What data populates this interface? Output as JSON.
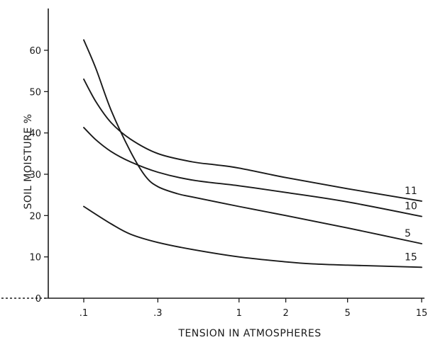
{
  "chart_data": {
    "type": "line",
    "title": "",
    "xlabel": "TENSION IN ATMOSPHERES",
    "ylabel": "SOIL MOISTURE %",
    "x_scale": "log",
    "xlim": [
      0.1,
      15
    ],
    "ylim": [
      0,
      65
    ],
    "x_ticks": [
      {
        "value": 0.1,
        "label": ".1"
      },
      {
        "value": 0.3,
        "label": ".3"
      },
      {
        "value": 1,
        "label": "1"
      },
      {
        "value": 2,
        "label": "2"
      },
      {
        "value": 5,
        "label": "5"
      },
      {
        "value": 15,
        "label": "15"
      }
    ],
    "y_ticks": [
      {
        "value": 0,
        "label": "0"
      },
      {
        "value": 10,
        "label": "10"
      },
      {
        "value": 20,
        "label": "20"
      },
      {
        "value": 30,
        "label": "30"
      },
      {
        "value": 40,
        "label": "40"
      },
      {
        "value": 50,
        "label": "50"
      },
      {
        "value": 60,
        "label": "60"
      }
    ],
    "grid": false,
    "legend": "none",
    "series": [
      {
        "name": "11",
        "x": [
          0.1,
          0.12,
          0.15,
          0.2,
          0.3,
          0.5,
          0.7,
          1,
          2,
          5,
          15
        ],
        "y": [
          53,
          47.5,
          42.5,
          38.5,
          35,
          33,
          32.3,
          31.5,
          29.2,
          26.5,
          23.5
        ]
      },
      {
        "name": "10",
        "x": [
          0.1,
          0.12,
          0.15,
          0.2,
          0.3,
          0.5,
          1,
          2,
          5,
          15
        ],
        "y": [
          41.3,
          38.3,
          35.5,
          33,
          30.5,
          28.6,
          27.2,
          25.6,
          23.3,
          19.8
        ]
      },
      {
        "name": "5",
        "x": [
          0.1,
          0.12,
          0.15,
          0.2,
          0.25,
          0.3,
          0.4,
          0.5,
          1,
          2,
          5,
          15
        ],
        "y": [
          62.5,
          55.5,
          45.5,
          35.5,
          29.5,
          27,
          25.3,
          24.5,
          22.2,
          20,
          17,
          13.2
        ]
      },
      {
        "name": "15",
        "x": [
          0.1,
          0.15,
          0.2,
          0.3,
          0.5,
          1,
          2,
          3,
          5,
          15
        ],
        "y": [
          22.2,
          18,
          15.5,
          13.5,
          11.8,
          10,
          8.8,
          8.3,
          8,
          7.5
        ]
      }
    ]
  }
}
